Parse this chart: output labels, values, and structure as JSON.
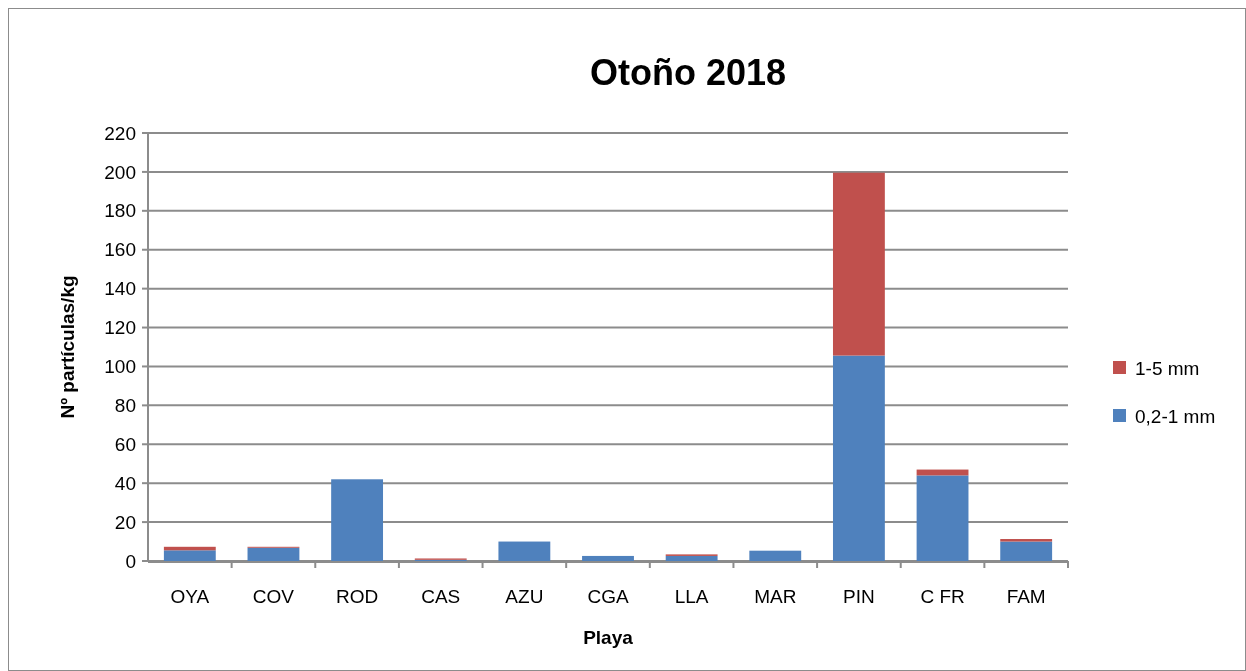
{
  "chart_data": {
    "type": "bar",
    "title": "Otoño 2018",
    "xlabel": "Playa",
    "ylabel": "Nº partículas/kg",
    "categories": [
      "OYA",
      "COV",
      "ROD",
      "CAS",
      "AZU",
      "CGA",
      "LLA",
      "MAR",
      "PIN",
      "C FR",
      "FAM"
    ],
    "series": [
      {
        "name": "0,2-1 mm",
        "color": "#4f81bd",
        "values": [
          5.5,
          6.8,
          42,
          0.6,
          10,
          2.6,
          2.6,
          5.3,
          105.6,
          44,
          10
        ]
      },
      {
        "name": "1-5 mm",
        "color": "#c0504d",
        "values": [
          1.8,
          0.5,
          0,
          0.7,
          0,
          0,
          0.8,
          0,
          94,
          3,
          1.3
        ]
      }
    ],
    "stacked": true,
    "ylim": [
      0,
      220
    ],
    "yticks": [
      0,
      20,
      40,
      60,
      80,
      100,
      120,
      140,
      160,
      180,
      200,
      220
    ],
    "grid": "y",
    "legend": "right"
  }
}
